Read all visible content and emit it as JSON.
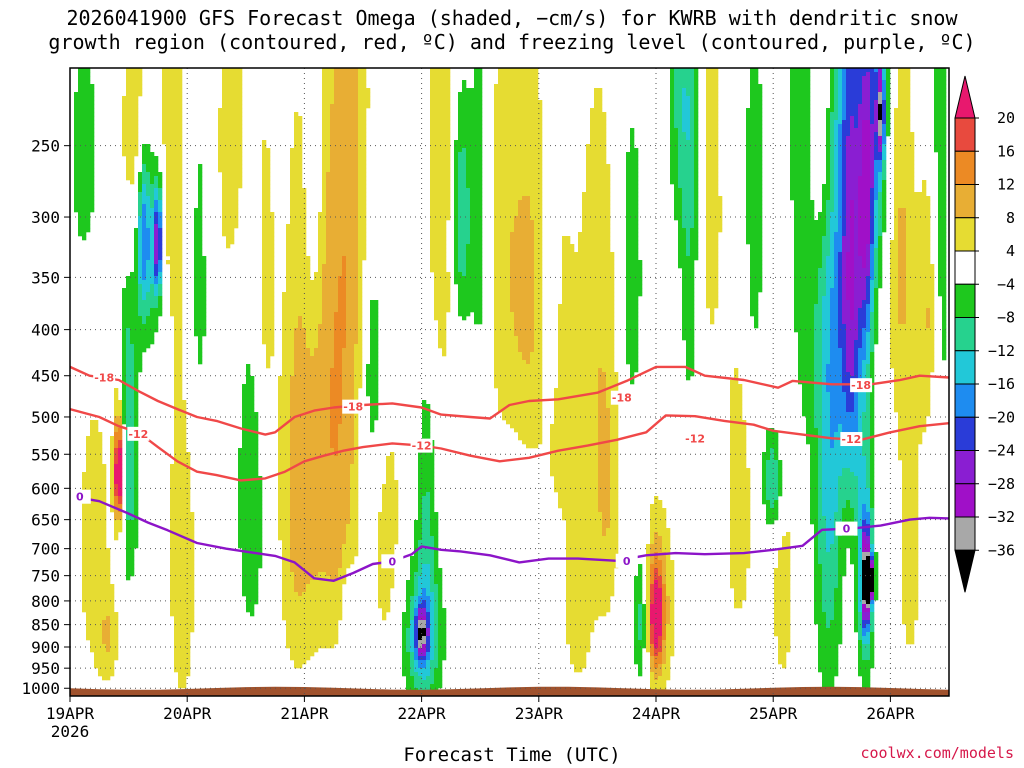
{
  "title": {
    "line1": "2026041900 GFS Forecast Omega (shaded, −cm/s) for KWRB with dendritic snow",
    "line2": "growth region (contoured, red, ºC) and freezing level (contoured, purple, ºC)"
  },
  "credit": "coolwx.com/models",
  "chart_data": {
    "type": "heatmap",
    "title": "2026041900 GFS Forecast Omega (shaded, −cm/s) for KWRB with dendritic snow growth region (contoured, red, ºC) and freezing level (contoured, purple, ºC)",
    "xlabel": "Forecast Time (UTC)",
    "ylabel": "",
    "y_scale": "log-pressure",
    "y_axis_reversed": true,
    "ylim": [
      1020,
      205
    ],
    "xlim_hours": [
      0,
      180
    ],
    "y_ticks": [
      250,
      300,
      350,
      400,
      450,
      500,
      550,
      600,
      650,
      700,
      750,
      800,
      850,
      900,
      950,
      1000
    ],
    "x_ticks": [
      {
        "hour": 0,
        "label": "19APR",
        "sublabel": "2026"
      },
      {
        "hour": 24,
        "label": "20APR"
      },
      {
        "hour": 48,
        "label": "21APR"
      },
      {
        "hour": 72,
        "label": "22APR"
      },
      {
        "hour": 96,
        "label": "23APR"
      },
      {
        "hour": 120,
        "label": "24APR"
      },
      {
        "hour": 144,
        "label": "25APR"
      },
      {
        "hour": 168,
        "label": "26APR"
      }
    ],
    "grid": true,
    "colorbar": {
      "labels": [
        "20",
        "16",
        "12",
        "8",
        "4",
        "−4",
        "−8",
        "−12",
        "−16",
        "−20",
        "−24",
        "−28",
        "−32",
        "−36"
      ],
      "bins": [
        {
          "range": [
            20,
            999
          ],
          "color": "#e8186e"
        },
        {
          "range": [
            16,
            20
          ],
          "color": "#e84a3e"
        },
        {
          "range": [
            12,
            16
          ],
          "color": "#ec8a24"
        },
        {
          "range": [
            8,
            12
          ],
          "color": "#e8ae34"
        },
        {
          "range": [
            4,
            8
          ],
          "color": "#e6dc32"
        },
        {
          "range": [
            -4,
            4
          ],
          "color": "#ffffff"
        },
        {
          "range": [
            -8,
            -4
          ],
          "color": "#1ec81e"
        },
        {
          "range": [
            -12,
            -8
          ],
          "color": "#26d28e"
        },
        {
          "range": [
            -16,
            -12
          ],
          "color": "#22c8d8"
        },
        {
          "range": [
            -20,
            -16
          ],
          "color": "#1e8cf0"
        },
        {
          "range": [
            -24,
            -20
          ],
          "color": "#2a3cd8"
        },
        {
          "range": [
            -28,
            -24
          ],
          "color": "#8a1ed2"
        },
        {
          "range": [
            -32,
            -28
          ],
          "color": "#a010c8"
        },
        {
          "range": [
            -36,
            -32
          ],
          "color": "#a8a8a8"
        },
        {
          "range": [
            -999,
            -36
          ],
          "color": "#000000"
        }
      ]
    },
    "omega_features": [
      {
        "hour": 10,
        "p": 580,
        "value": 22,
        "hw": 0.5,
        "hp": 40
      },
      {
        "hour": 10,
        "p": 560,
        "value": 14,
        "hw": 0.8,
        "hp": 80
      },
      {
        "hour": 5,
        "p": 700,
        "value": 6,
        "hw": 3,
        "hp": 220
      },
      {
        "hour": 3,
        "p": 260,
        "value": -8,
        "hw": 2,
        "hp": 60
      },
      {
        "hour": 8,
        "p": 880,
        "value": 6,
        "hw": 1.5,
        "hp": 70
      },
      {
        "hour": 12,
        "p": 530,
        "value": -12,
        "hw": 1.5,
        "hp": 160
      },
      {
        "hour": 15,
        "p": 310,
        "value": -20,
        "hw": 1,
        "hp": 50
      },
      {
        "hour": 17,
        "p": 300,
        "value": -12,
        "hw": 1.5,
        "hp": 80
      },
      {
        "hour": 18,
        "p": 320,
        "value": -24,
        "hw": 0.7,
        "hp": 30
      },
      {
        "hour": 14,
        "p": 250,
        "value": 10,
        "hw": 3,
        "hp": 60
      },
      {
        "hour": 21,
        "p": 260,
        "value": 6,
        "hw": 3,
        "hp": 90
      },
      {
        "hour": 23,
        "p": 700,
        "value": 8,
        "hw": 2,
        "hp": 260
      },
      {
        "hour": 26,
        "p": 330,
        "value": -7,
        "hw": 2,
        "hp": 150
      },
      {
        "hour": 33,
        "p": 250,
        "value": 6,
        "hw": 3,
        "hp": 90
      },
      {
        "hour": 37,
        "p": 620,
        "value": -8,
        "hw": 2,
        "hp": 180
      },
      {
        "hour": 40,
        "p": 360,
        "value": 6,
        "hw": 1.5,
        "hp": 120
      },
      {
        "hour": 46,
        "p": 620,
        "value": 8,
        "hw": 2.5,
        "hp": 250
      },
      {
        "hour": 51,
        "p": 470,
        "value": 10,
        "hw": 3,
        "hp": 280
      },
      {
        "hour": 50,
        "p": 270,
        "value": -8,
        "hw": 1.5,
        "hp": 120
      },
      {
        "hour": 56,
        "p": 600,
        "value": 8,
        "hw": 2.5,
        "hp": 220
      },
      {
        "hour": 58,
        "p": 280,
        "value": 8,
        "hw": 3,
        "hp": 140
      },
      {
        "hour": 62,
        "p": 440,
        "value": -10,
        "hw": 1.5,
        "hp": 100
      },
      {
        "hour": 57,
        "p": 860,
        "value": -8,
        "hw": 1,
        "hp": 90
      },
      {
        "hour": 65,
        "p": 700,
        "value": 6,
        "hw": 2.5,
        "hp": 200
      },
      {
        "hour": 72,
        "p": 880,
        "value": -14,
        "hw": 3,
        "hp": 110
      },
      {
        "hour": 72,
        "p": 870,
        "value": -22,
        "hw": 0.9,
        "hp": 40
      },
      {
        "hour": 73,
        "p": 640,
        "value": -8,
        "hw": 1.5,
        "hp": 200
      },
      {
        "hour": 76,
        "p": 290,
        "value": 8,
        "hw": 3,
        "hp": 130
      },
      {
        "hour": 80,
        "p": 300,
        "value": -14,
        "hw": 1.5,
        "hp": 70
      },
      {
        "hour": 84,
        "p": 300,
        "value": -8,
        "hw": 1.5,
        "hp": 130
      },
      {
        "hour": 88,
        "p": 330,
        "value": 6,
        "hw": 3,
        "hp": 150
      },
      {
        "hour": 94,
        "p": 360,
        "value": 8,
        "hw": 3,
        "hp": 130
      },
      {
        "hour": 98,
        "p": 390,
        "value": -8,
        "hw": 1.5,
        "hp": 80
      },
      {
        "hour": 100,
        "p": 450,
        "value": 6,
        "hw": 3,
        "hp": 150
      },
      {
        "hour": 104,
        "p": 830,
        "value": 6,
        "hw": 2.5,
        "hp": 150
      },
      {
        "hour": 108,
        "p": 400,
        "value": 6,
        "hw": 3,
        "hp": 200
      },
      {
        "hour": 110,
        "p": 640,
        "value": 6,
        "hw": 2,
        "hp": 160
      },
      {
        "hour": 115,
        "p": 350,
        "value": -8,
        "hw": 1.5,
        "hp": 100
      },
      {
        "hour": 117,
        "p": 840,
        "value": -14,
        "hw": 1.2,
        "hp": 110
      },
      {
        "hour": 120,
        "p": 820,
        "value": 12,
        "hw": 2.5,
        "hp": 140
      },
      {
        "hour": 120,
        "p": 830,
        "value": 17,
        "hw": 1,
        "hp": 70
      },
      {
        "hour": 125,
        "p": 220,
        "value": -8,
        "hw": 2,
        "hp": 60
      },
      {
        "hour": 127,
        "p": 300,
        "value": -8,
        "hw": 1.5,
        "hp": 140
      },
      {
        "hour": 131,
        "p": 280,
        "value": 6,
        "hw": 2,
        "hp": 120
      },
      {
        "hour": 137,
        "p": 620,
        "value": 6,
        "hw": 2.5,
        "hp": 220
      },
      {
        "hour": 140,
        "p": 300,
        "value": -8,
        "hw": 1.5,
        "hp": 120
      },
      {
        "hour": 144,
        "p": 590,
        "value": -14,
        "hw": 1.5,
        "hp": 60
      },
      {
        "hour": 146,
        "p": 750,
        "value": 6,
        "hw": 2,
        "hp": 220
      },
      {
        "hour": 150,
        "p": 260,
        "value": -8,
        "hw": 2,
        "hp": 180
      },
      {
        "hour": 154,
        "p": 230,
        "value": 10,
        "hw": 2,
        "hp": 70
      },
      {
        "hour": 155,
        "p": 600,
        "value": -8,
        "hw": 2,
        "hp": 330
      },
      {
        "hour": 158,
        "p": 380,
        "value": -14,
        "hw": 3,
        "hp": 280
      },
      {
        "hour": 159,
        "p": 620,
        "value": 6,
        "hw": 1.5,
        "hp": 150
      },
      {
        "hour": 160,
        "p": 360,
        "value": -18,
        "hw": 1.5,
        "hp": 160
      },
      {
        "hour": 163,
        "p": 300,
        "value": -20,
        "hw": 1.2,
        "hp": 90
      },
      {
        "hour": 163,
        "p": 750,
        "value": -16,
        "hw": 1.2,
        "hp": 150
      },
      {
        "hour": 163,
        "p": 760,
        "value": -30,
        "hw": 0.6,
        "hp": 60
      },
      {
        "hour": 164,
        "p": 760,
        "value": -38,
        "hw": 0.4,
        "hp": 25
      },
      {
        "hour": 165,
        "p": 230,
        "value": -14,
        "hw": 2,
        "hp": 80
      },
      {
        "hour": 166,
        "p": 230,
        "value": -24,
        "hw": 0.6,
        "hp": 20
      },
      {
        "hour": 170,
        "p": 320,
        "value": 8,
        "hw": 2,
        "hp": 120
      },
      {
        "hour": 172,
        "p": 700,
        "value": 6,
        "hw": 2,
        "hp": 220
      },
      {
        "hour": 176,
        "p": 380,
        "value": 10,
        "hw": 1.5,
        "hp": 100
      },
      {
        "hour": 178,
        "p": 300,
        "value": -8,
        "hw": 1.5,
        "hp": 200
      }
    ],
    "contours": [
      {
        "name": "dendritic-minus18",
        "level": "-18",
        "color": "#f04848",
        "points": [
          [
            0,
            440
          ],
          [
            4,
            450
          ],
          [
            10,
            455
          ],
          [
            14,
            468
          ],
          [
            18,
            480
          ],
          [
            22,
            490
          ],
          [
            26,
            500
          ],
          [
            30,
            505
          ],
          [
            35,
            515
          ],
          [
            40,
            523
          ],
          [
            42,
            520
          ],
          [
            46,
            500
          ],
          [
            50,
            492
          ],
          [
            54,
            488
          ],
          [
            60,
            485
          ],
          [
            66,
            483
          ],
          [
            72,
            488
          ],
          [
            76,
            497
          ],
          [
            82,
            500
          ],
          [
            86,
            502
          ],
          [
            90,
            485
          ],
          [
            94,
            480
          ],
          [
            100,
            478
          ],
          [
            108,
            470
          ],
          [
            114,
            456
          ],
          [
            120,
            440
          ],
          [
            126,
            440
          ],
          [
            130,
            450
          ],
          [
            138,
            455
          ],
          [
            145,
            464
          ],
          [
            148,
            456
          ],
          [
            156,
            460
          ],
          [
            164,
            460
          ],
          [
            170,
            455
          ],
          [
            174,
            450
          ],
          [
            180,
            452
          ]
        ],
        "labels": [
          {
            "hour": 7,
            "p": 452
          },
          {
            "hour": 58,
            "p": 487
          },
          {
            "hour": 113,
            "p": 476
          },
          {
            "hour": 162,
            "p": 461
          }
        ]
      },
      {
        "name": "dendritic-minus12",
        "level": "-12",
        "color": "#f04848",
        "points": [
          [
            0,
            490
          ],
          [
            6,
            500
          ],
          [
            10,
            512
          ],
          [
            14,
            520
          ],
          [
            18,
            540
          ],
          [
            22,
            560
          ],
          [
            26,
            575
          ],
          [
            30,
            580
          ],
          [
            35,
            588
          ],
          [
            40,
            585
          ],
          [
            44,
            575
          ],
          [
            48,
            560
          ],
          [
            52,
            552
          ],
          [
            56,
            545
          ],
          [
            60,
            540
          ],
          [
            66,
            535
          ],
          [
            72,
            538
          ],
          [
            76,
            542
          ],
          [
            82,
            552
          ],
          [
            88,
            560
          ],
          [
            94,
            555
          ],
          [
            100,
            545
          ],
          [
            106,
            538
          ],
          [
            112,
            530
          ],
          [
            118,
            520
          ],
          [
            122,
            498
          ],
          [
            128,
            499
          ],
          [
            134,
            505
          ],
          [
            140,
            510
          ],
          [
            144,
            518
          ],
          [
            150,
            523
          ],
          [
            156,
            528
          ],
          [
            162,
            530
          ],
          [
            168,
            520
          ],
          [
            174,
            512
          ],
          [
            180,
            508
          ]
        ],
        "labels": [
          {
            "hour": 14,
            "p": 522
          },
          {
            "hour": 72,
            "p": 538
          },
          {
            "hour": 128,
            "p": 528
          },
          {
            "hour": 160,
            "p": 529
          }
        ]
      },
      {
        "name": "freezing-level-0",
        "level": "0",
        "color": "#8c14c8",
        "points": [
          [
            0,
            612
          ],
          [
            6,
            620
          ],
          [
            12,
            640
          ],
          [
            16,
            655
          ],
          [
            20,
            668
          ],
          [
            26,
            690
          ],
          [
            32,
            700
          ],
          [
            38,
            708
          ],
          [
            42,
            713
          ],
          [
            46,
            725
          ],
          [
            50,
            755
          ],
          [
            54,
            760
          ],
          [
            58,
            745
          ],
          [
            62,
            728
          ],
          [
            66,
            723
          ],
          [
            70,
            710
          ],
          [
            72,
            696
          ],
          [
            76,
            702
          ],
          [
            80,
            705
          ],
          [
            86,
            712
          ],
          [
            92,
            725
          ],
          [
            98,
            718
          ],
          [
            104,
            718
          ],
          [
            112,
            722
          ],
          [
            118,
            712
          ],
          [
            124,
            708
          ],
          [
            130,
            710
          ],
          [
            138,
            708
          ],
          [
            144,
            702
          ],
          [
            150,
            695
          ],
          [
            154,
            667
          ],
          [
            160,
            665
          ],
          [
            166,
            660
          ],
          [
            172,
            650
          ],
          [
            176,
            647
          ],
          [
            180,
            648
          ]
        ],
        "labels": [
          {
            "hour": 2,
            "p": 613
          },
          {
            "hour": 66,
            "p": 723
          },
          {
            "hour": 114,
            "p": 722
          },
          {
            "hour": 159,
            "p": 665
          }
        ]
      }
    ]
  }
}
